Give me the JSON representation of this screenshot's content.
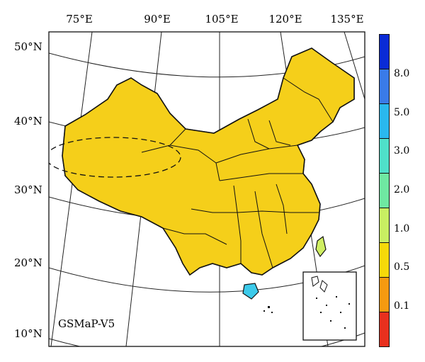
{
  "map": {
    "label": "GSMaP-V5",
    "lon_labels": [
      "75°E",
      "90°E",
      "105°E",
      "120°E",
      "135°E"
    ],
    "lat_labels": [
      "50°N",
      "40°N",
      "30°N",
      "20°N",
      "10°N"
    ]
  },
  "colorbar": {
    "colors": [
      "#0a2bd6",
      "#3a7be8",
      "#2ab8ee",
      "#4fe0c9",
      "#6fe8a2",
      "#c8ef62",
      "#f5d90a",
      "#f59a10",
      "#e8301e"
    ],
    "ticks": [
      "8.0",
      "5.0",
      "3.0",
      "2.0",
      "1.0",
      "0.5",
      "0.1"
    ]
  }
}
